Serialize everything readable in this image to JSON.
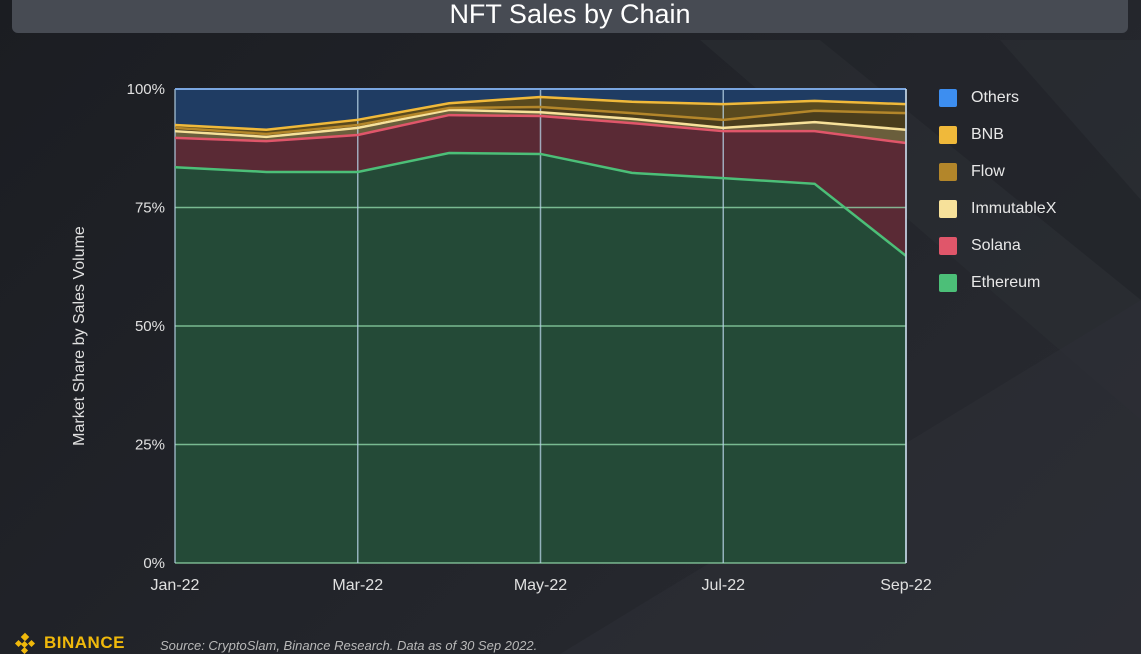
{
  "header": {
    "title": "NFT Sales by Chain"
  },
  "footer": {
    "source": "Source: CryptoSlam, Binance Research. Data as of 30 Sep 2022.",
    "logo_text": "BINANCE"
  },
  "colors": {
    "Others": "#3d8ef0",
    "BNB": "#f0b93a",
    "Flow": "#b3862a",
    "ImmutableX": "#f7e19a",
    "Solana": "#e0566a",
    "Ethereum": "#4cbf78"
  },
  "chart_data": {
    "type": "area",
    "stacked": true,
    "title": "NFT Sales by Chain",
    "xlabel": "",
    "ylabel": "Market Share by Sales Volume",
    "ylim": [
      0,
      100
    ],
    "yticks": [
      "0%",
      "25%",
      "50%",
      "75%",
      "100%"
    ],
    "ytick_values": [
      0,
      25,
      50,
      75,
      100
    ],
    "x": [
      "Jan-22",
      "Feb-22",
      "Mar-22",
      "Apr-22",
      "May-22",
      "Jun-22",
      "Jul-22",
      "Aug-22",
      "Sep-22"
    ],
    "xtick_labels": [
      "Jan-22",
      "Mar-22",
      "May-22",
      "Jul-22",
      "Sep-22"
    ],
    "xtick_indices": [
      0,
      2,
      4,
      6,
      8
    ],
    "grid": true,
    "legend_position": "right",
    "series": [
      {
        "name": "Ethereum",
        "values": [
          83.5,
          82.5,
          82.5,
          86.5,
          86.3,
          82.3,
          81.2,
          80.0,
          64.8
        ]
      },
      {
        "name": "Solana",
        "values": [
          6.2,
          6.5,
          7.8,
          8.0,
          8.0,
          10.5,
          9.9,
          11.1,
          23.8
        ]
      },
      {
        "name": "ImmutableX",
        "values": [
          1.4,
          0.9,
          1.5,
          1.1,
          0.8,
          0.9,
          0.7,
          1.9,
          2.8
        ]
      },
      {
        "name": "Flow",
        "values": [
          0.7,
          0.6,
          0.6,
          0.4,
          1.1,
          1.2,
          1.7,
          2.4,
          3.5
        ]
      },
      {
        "name": "BNB",
        "values": [
          0.6,
          0.9,
          1.1,
          1.0,
          2.1,
          2.4,
          3.3,
          2.1,
          1.9
        ]
      },
      {
        "name": "Others",
        "values": [
          7.6,
          8.6,
          6.5,
          3.0,
          1.7,
          2.7,
          3.2,
          2.5,
          3.2
        ]
      }
    ],
    "legend_order": [
      "Others",
      "BNB",
      "Flow",
      "ImmutableX",
      "Solana",
      "Ethereum"
    ]
  }
}
